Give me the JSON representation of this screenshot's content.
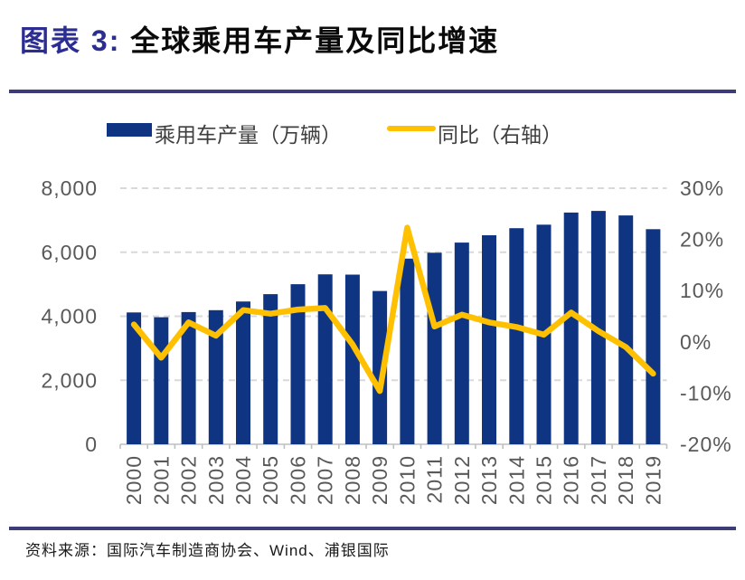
{
  "header": {
    "title_prefix": "图表 3:",
    "title_text": "全球乘用车产量及同比增速"
  },
  "legend": {
    "items": [
      {
        "label": "乘用车产量（万辆）",
        "swatch": "bar",
        "color": "#0F3582"
      },
      {
        "label": "同比（右轴）",
        "swatch": "line",
        "color": "#FFC000"
      }
    ]
  },
  "chart_data": {
    "type": "bar+line combo",
    "categories": [
      "2000",
      "2001",
      "2002",
      "2003",
      "2004",
      "2005",
      "2006",
      "2007",
      "2008",
      "2009",
      "2010",
      "2011",
      "2012",
      "2013",
      "2014",
      "2015",
      "2016",
      "2017",
      "2018",
      "2019"
    ],
    "series": [
      {
        "name": "乘用车产量（万辆）",
        "type": "bar",
        "axis": "left",
        "color": "#0F3582",
        "values": [
          4120,
          3970,
          4130,
          4190,
          4460,
          4690,
          5000,
          5310,
          5300,
          4790,
          5800,
          5985,
          6300,
          6530,
          6750,
          6860,
          7240,
          7290,
          7150,
          6720
        ]
      },
      {
        "name": "同比（右轴）",
        "type": "line",
        "axis": "right",
        "unit": "%",
        "color": "#FFC000",
        "values": [
          3.4,
          -3.1,
          3.8,
          1.2,
          6.2,
          5.5,
          6.3,
          6.6,
          -0.5,
          -9.6,
          22.3,
          3.0,
          5.3,
          3.8,
          2.9,
          1.4,
          5.7,
          2.1,
          -1.0,
          -6.2
        ]
      }
    ],
    "left_axis": {
      "min": 0,
      "max": 8000,
      "ticks": [
        {
          "label": "8,000",
          "value": 8000
        },
        {
          "label": "6,000",
          "value": 6000
        },
        {
          "label": "4,000",
          "value": 4000
        },
        {
          "label": "2,000",
          "value": 2000
        },
        {
          "label": "0",
          "value": 0
        }
      ]
    },
    "right_axis": {
      "min": -20,
      "max": 30,
      "ticks": [
        {
          "label": "30%",
          "value": 30
        },
        {
          "label": "20%",
          "value": 20
        },
        {
          "label": "10%",
          "value": 10
        },
        {
          "label": "0%",
          "value": 0
        },
        {
          "label": "-10%",
          "value": -10
        },
        {
          "label": "-20%",
          "value": -20
        }
      ]
    },
    "grid": {
      "horizontal": "dashed",
      "color": "#D9D9D9",
      "axis_color": "#BFBFBF"
    }
  },
  "footer": {
    "source_note": "资料来源：国际汽车制造商协会、Wind、浦银国际"
  }
}
